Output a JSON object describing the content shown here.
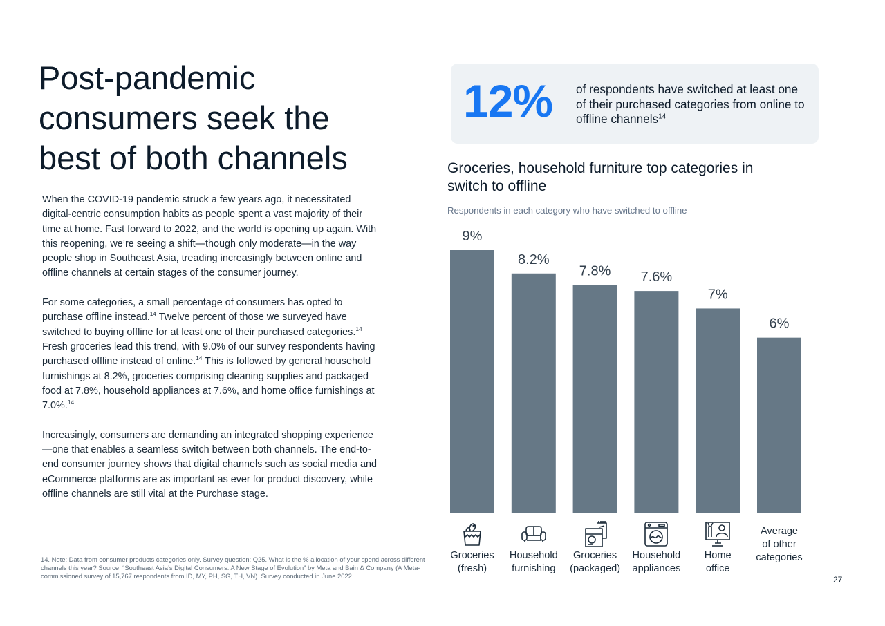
{
  "heading": {
    "line1": "Post-pandemic",
    "line2": "consumers seek the",
    "line3": "best of both channels"
  },
  "body": {
    "p1": "When the COVID-19 pandemic struck a few years ago, it necessitated digital-centric consumption habits as people spent a vast majority of their time at home. Fast forward to 2022, and the world is opening up again. With this reopening, we’re seeing a shift—though only moderate—in the way people shop in Southeast Asia, treading increasingly between online and offline channels at certain stages of the consumer journey.",
    "p2_a": "For some categories, a small percentage of consumers has opted to purchase offline instead.",
    "p2_b": " Twelve percent of those we surveyed have switched to buying offline for at least one of their purchased categories.",
    "p2_c": " Fresh groceries lead this trend, with 9.0% of our survey respondents having purchased offline instead of online.",
    "p2_d": " This is followed by general household furnishings at 8.2%, groceries comprising cleaning supplies and packaged food at 7.8%, household appliances at 7.6%, and home office furnishings at 7.0%.",
    "ref": "14",
    "p3": "Increasingly, consumers are demanding an integrated shopping experience—one that enables a seamless switch between both channels. The end-to-end consumer journey shows that digital channels such as social media and eCommerce platforms are as important as ever for product discovery, while offline channels are still vital at the Purchase stage."
  },
  "footnote": "14. Note: Data from consumer products categories only. Survey question: Q25. What is the % allocation of your spend across different channels this year? Source: “Southeast Asia’s Digital Consumers: A New Stage of Evolution” by Meta and Bain & Company (A Meta-commissioned survey of 15,767 respondents from ID, MY, PH, SG, TH, VN). Survey conducted in June 2022.",
  "callout": {
    "value": "12%",
    "text": "of respondents have switched at least one of their purchased categories from online to offline channels",
    "ref": "14"
  },
  "page_number": "27",
  "colors": {
    "bar": "#667886",
    "accent": "#1877f2",
    "callout_bg": "#eef2f5"
  },
  "chart_data": {
    "type": "bar",
    "title": "Groceries, household furniture top categories in switch to offline",
    "subtitle": "Respondents in each category who have switched to offline",
    "categories": [
      "Groceries (fresh)",
      "Household furnishing",
      "Groceries (packaged)",
      "Household appliances",
      "Home office",
      "Average of other categories"
    ],
    "category_lines": [
      [
        "Groceries",
        "(fresh)"
      ],
      [
        "Household",
        "furnishing"
      ],
      [
        "Groceries",
        "(packaged)"
      ],
      [
        "Household",
        "appliances"
      ],
      [
        "Home",
        "office"
      ],
      [
        "Average",
        "of other",
        "categories"
      ]
    ],
    "icons": [
      "grocery-bag-icon",
      "sofa-icon",
      "packaged-groceries-icon",
      "washing-machine-icon",
      "home-office-icon",
      ""
    ],
    "values": [
      9.0,
      8.2,
      7.8,
      7.6,
      7.0,
      6.0
    ],
    "value_labels": [
      "9%",
      "8.2%",
      "7.8%",
      "7.6%",
      "7%",
      "6%"
    ],
    "ylim": [
      0,
      9
    ],
    "grid": false,
    "legend": "none"
  }
}
